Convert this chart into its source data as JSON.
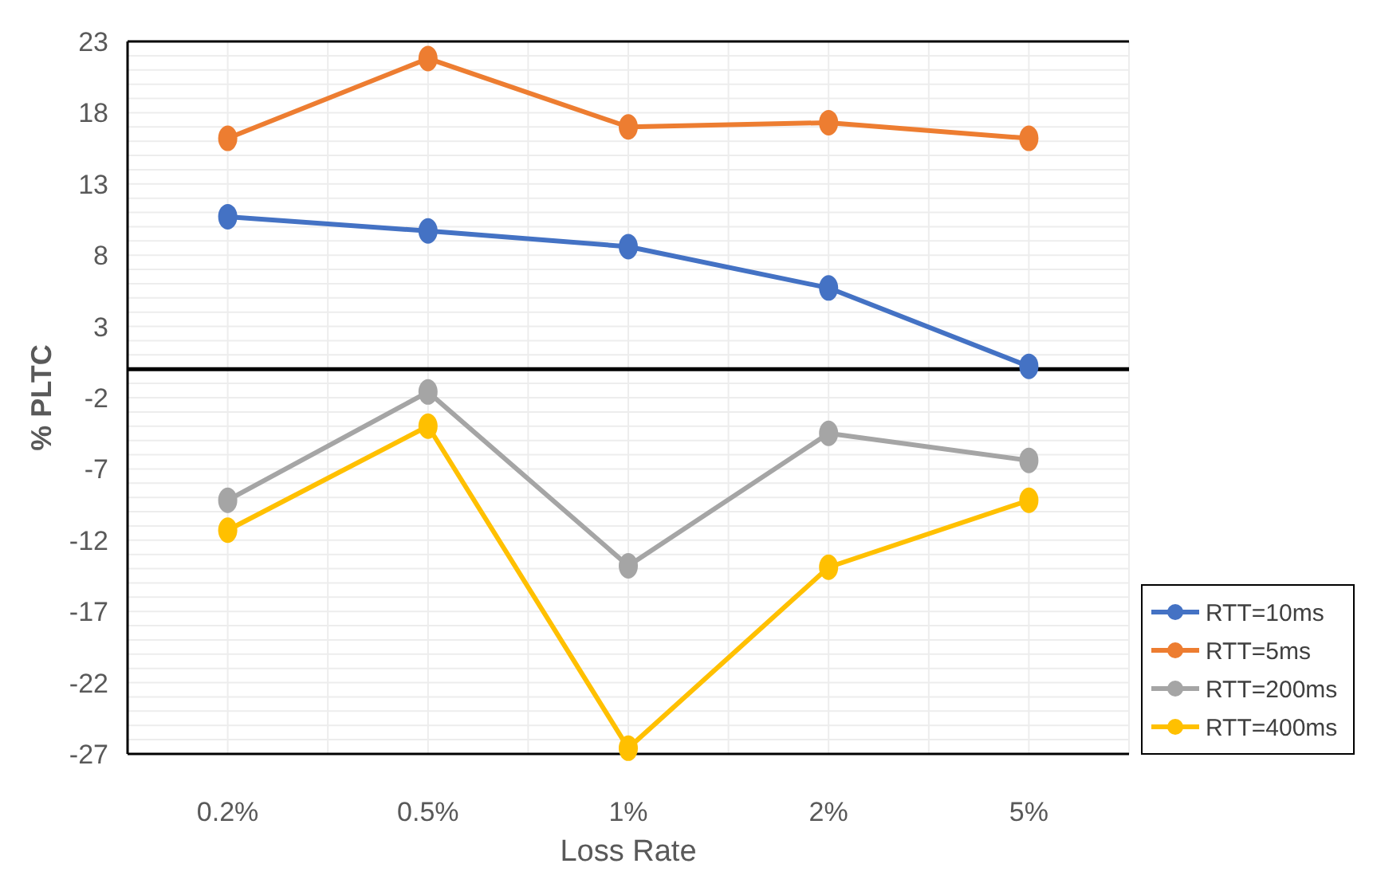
{
  "chart_data": {
    "type": "line",
    "xlabel": "Loss Rate",
    "ylabel": "% PLTC",
    "categories": [
      "0.2%",
      "0.5%",
      "1%",
      "2%",
      "5%"
    ],
    "series": [
      {
        "name": "RTT=10ms",
        "color": "#4472c4",
        "values": [
          10.7,
          9.7,
          8.6,
          5.7,
          0.2
        ]
      },
      {
        "name": "RTT=5ms",
        "color": "#ed7d31",
        "values": [
          16.2,
          21.8,
          17.0,
          17.3,
          16.2
        ]
      },
      {
        "name": "RTT=200ms",
        "color": "#a5a5a5",
        "values": [
          -9.2,
          -1.6,
          -13.8,
          -4.5,
          -6.4
        ]
      },
      {
        "name": "RTT=400ms",
        "color": "#ffc000",
        "values": [
          -11.3,
          -4.0,
          -26.6,
          -13.9,
          -9.2
        ]
      }
    ],
    "ylim": [
      -27,
      23
    ],
    "yticks": [
      23,
      18,
      13,
      8,
      3,
      -2,
      -7,
      -12,
      -17,
      -22,
      -27
    ],
    "grid": true,
    "legend": "right",
    "marker": "circle",
    "line_style": "solid"
  }
}
